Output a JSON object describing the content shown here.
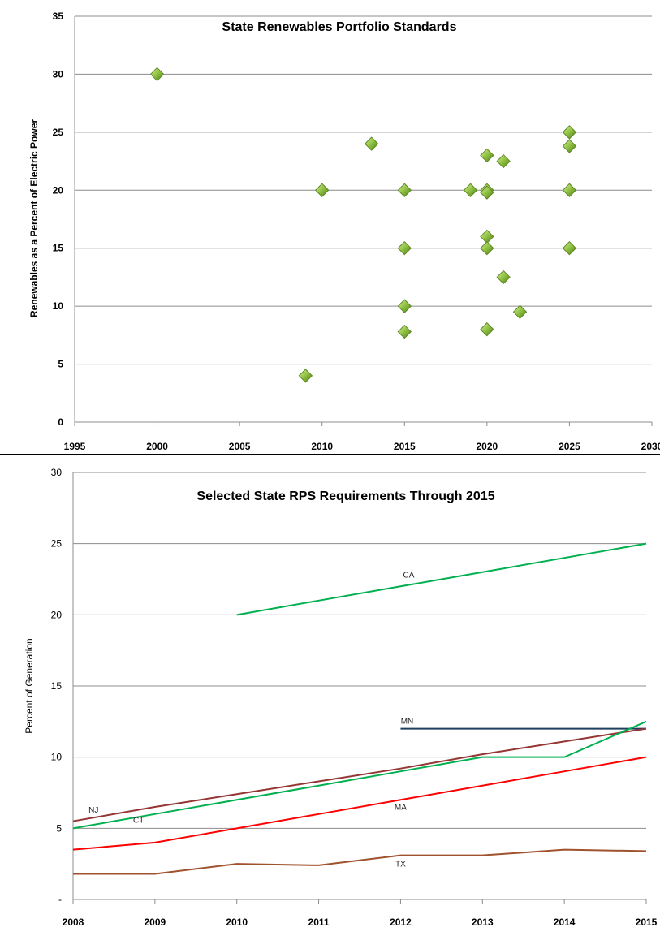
{
  "chart_data": [
    {
      "type": "scatter",
      "title": "State Renewables Portfolio Standards",
      "xlabel": "",
      "ylabel": "Renewables as a Percent of Electric Power",
      "xlim": [
        1995,
        2030
      ],
      "ylim": [
        0,
        35
      ],
      "x_ticks": [
        "1995",
        "2000",
        "2005",
        "2010",
        "2015",
        "2020",
        "2025",
        "2030"
      ],
      "y_ticks": [
        "0",
        "5",
        "10",
        "15",
        "20",
        "25",
        "30",
        "35"
      ],
      "grid": true,
      "marker": "diamond",
      "marker_color": "#8fc040",
      "points": [
        {
          "x": 2000,
          "y": 30
        },
        {
          "x": 2009,
          "y": 4
        },
        {
          "x": 2010,
          "y": 20
        },
        {
          "x": 2013,
          "y": 24
        },
        {
          "x": 2015,
          "y": 20
        },
        {
          "x": 2015,
          "y": 15
        },
        {
          "x": 2015,
          "y": 10
        },
        {
          "x": 2015,
          "y": 7.8
        },
        {
          "x": 2019,
          "y": 20
        },
        {
          "x": 2020,
          "y": 23
        },
        {
          "x": 2020,
          "y": 20
        },
        {
          "x": 2020,
          "y": 19.8
        },
        {
          "x": 2020,
          "y": 16
        },
        {
          "x": 2020,
          "y": 15
        },
        {
          "x": 2020,
          "y": 8
        },
        {
          "x": 2021,
          "y": 22.5
        },
        {
          "x": 2021,
          "y": 12.5
        },
        {
          "x": 2022,
          "y": 9.5
        },
        {
          "x": 2025,
          "y": 25
        },
        {
          "x": 2025,
          "y": 23.8
        },
        {
          "x": 2025,
          "y": 20
        },
        {
          "x": 2025,
          "y": 15
        }
      ]
    },
    {
      "type": "line",
      "title": "Selected State RPS Requirements Through 2015",
      "xlabel": "",
      "ylabel": "Percent of Generation",
      "xlim": [
        2008,
        2015
      ],
      "ylim": [
        0,
        30
      ],
      "x_ticks": [
        "2008",
        "2009",
        "2010",
        "2011",
        "2012",
        "2013",
        "2014",
        "2015"
      ],
      "y_ticks": [
        "-",
        "5",
        "10",
        "15",
        "20",
        "25",
        "30"
      ],
      "grid": true,
      "series": [
        {
          "name": "CA",
          "color": "#00b050",
          "x": [
            2010,
            2011,
            2012,
            2013,
            2014,
            2015
          ],
          "values": [
            20,
            21,
            22,
            23,
            24,
            25
          ]
        },
        {
          "name": "MN",
          "color": "#1f3f5f",
          "x": [
            2012,
            2013,
            2014,
            2015
          ],
          "values": [
            12,
            12,
            12,
            12
          ]
        },
        {
          "name": "NJ",
          "color": "#943634",
          "x": [
            2008,
            2009,
            2010,
            2011,
            2012,
            2013,
            2014,
            2015
          ],
          "values": [
            5.5,
            6.5,
            7.4,
            8.3,
            9.2,
            10.2,
            11.1,
            12
          ]
        },
        {
          "name": "CT",
          "color": "#00b050",
          "x": [
            2008,
            2009,
            2010,
            2011,
            2012,
            2013,
            2014,
            2015
          ],
          "values": [
            5,
            6,
            7,
            8,
            9,
            10,
            10,
            12.5
          ]
        },
        {
          "name": "MA",
          "color": "#ff0000",
          "x": [
            2008,
            2009,
            2010,
            2011,
            2012,
            2013,
            2014,
            2015
          ],
          "values": [
            3.5,
            4,
            5,
            6,
            7,
            8,
            9,
            10
          ]
        },
        {
          "name": "TX",
          "color": "#a0522d",
          "x": [
            2008,
            2009,
            2010,
            2011,
            2012,
            2013,
            2014,
            2015
          ],
          "values": [
            1.8,
            1.8,
            2.5,
            2.4,
            3.1,
            3.1,
            3.5,
            3.4
          ]
        }
      ]
    }
  ]
}
